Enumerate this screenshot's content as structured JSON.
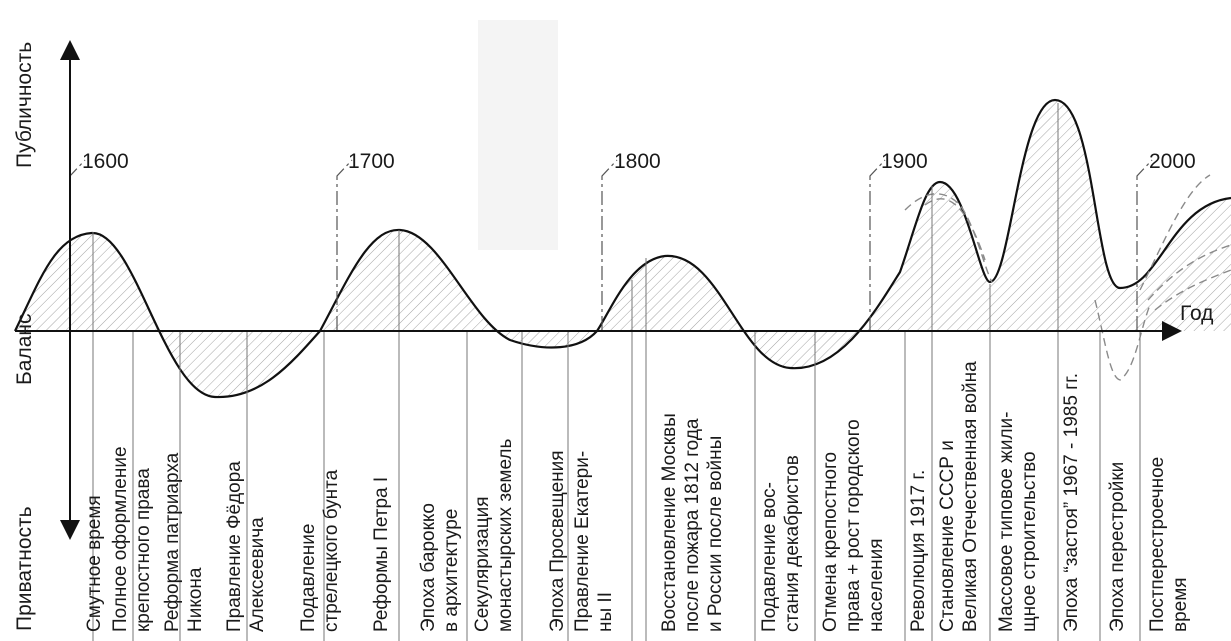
{
  "axes": {
    "y_top": "Публичность",
    "y_middle": "Баланс",
    "y_bottom": "Приватность",
    "x": "Год"
  },
  "years": [
    "1600",
    "1700",
    "1800",
    "1900",
    "2000"
  ],
  "events": [
    [
      "Смутное время"
    ],
    [
      "Полное оформление",
      "крепостного права"
    ],
    [
      "Реформа патриарха",
      "Никона"
    ],
    [
      "Правление Фёдора",
      "Алексеевича"
    ],
    [
      "Подавление",
      "стрелецкого бунта"
    ],
    [
      "Реформы Петра I"
    ],
    [
      "Эпоха барокко",
      "в архитектуре"
    ],
    [
      "Секуляризация",
      "монастырских земель"
    ],
    [
      "Эпоха Просвещения"
    ],
    [
      "Правление Екатери-",
      "ны II"
    ],
    [
      "Восстановление Москвы",
      "после пожара 1812 года",
      "и России после войны"
    ],
    [
      "Подавление вос-",
      "стания декабристов"
    ],
    [
      "Отмена крепостного",
      "права + рост городского",
      "населения"
    ],
    [
      "Революция 1917 г."
    ],
    [
      "Становление СССР и",
      "Великая Отечественная война"
    ],
    [
      "Массовое типовое жили-",
      "щное строительство"
    ],
    [
      "Эпоха “застоя” 1967 - 1985 гг."
    ],
    [
      "Эпоха перестройки"
    ],
    [
      "Постперестроечное",
      "время"
    ]
  ],
  "colors": {
    "line": "#111111",
    "hatch": "#9a9a9a",
    "dashed": "#8a8a8a"
  }
}
